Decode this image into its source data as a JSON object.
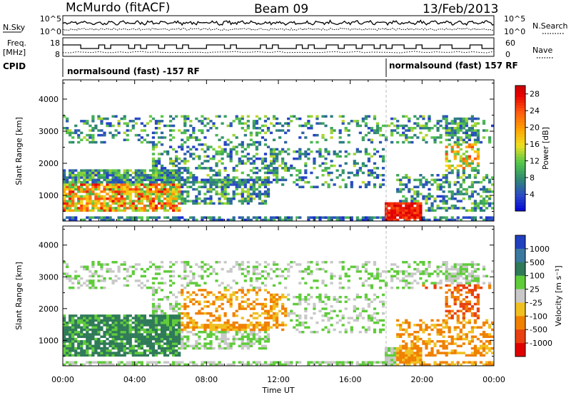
{
  "header": {
    "station": "McMurdo (fitACF)",
    "beam": "Beam 09",
    "date": "13/Feb/2013"
  },
  "strip": {
    "nsky_label": "N.Sky",
    "nsearch_label": "N.Search",
    "nsky_ticks": [
      "10^5",
      "10^0"
    ],
    "nsearch_ticks": [
      "10^5",
      "10^0"
    ],
    "freq_label": "Freq.",
    "freq_unit": "[MHz]",
    "freq_ticks": [
      "18",
      "8"
    ],
    "nave_label": "Nave",
    "nave_ticks": [
      "60",
      "0"
    ],
    "cpid_label": "CPID",
    "cpid_modes": [
      {
        "text": "normalsound (fast) -157 RF",
        "start_hour": 0
      },
      {
        "text": "normalsound (fast) 157 RF",
        "start_hour": 18
      }
    ]
  },
  "chart_data": [
    {
      "type": "heatmap",
      "name": "power",
      "ylabel": "Slant Range [km]",
      "ylim": [
        200,
        4600
      ],
      "yticks": [
        1000,
        2000,
        3000,
        4000
      ],
      "xlim": [
        0,
        24
      ],
      "colorbar": {
        "label": "Power [dB]",
        "ticks": [
          4,
          8,
          12,
          16,
          20,
          24,
          28
        ],
        "range": [
          0,
          30
        ]
      },
      "features": [
        {
          "from_hour": 0,
          "to_hour": 6.5,
          "range_km": [
            500,
            1800
          ],
          "level_db": "14-28"
        },
        {
          "from_hour": 6.5,
          "to_hour": 11,
          "range_km": [
            800,
            1400
          ],
          "level_db": "8-18"
        },
        {
          "from_hour": 18,
          "to_hour": 20,
          "range_km": [
            250,
            800
          ],
          "level_db": "24-30"
        },
        {
          "from_hour": 21.5,
          "to_hour": 23,
          "range_km": [
            1700,
            3400
          ],
          "level_db": "8-24"
        }
      ]
    },
    {
      "type": "heatmap",
      "name": "velocity",
      "ylabel": "Slant Range [km]",
      "xlabel": "Time UT",
      "ylim": [
        200,
        4600
      ],
      "yticks": [
        1000,
        2000,
        3000,
        4000
      ],
      "xlim": [
        0,
        24
      ],
      "x_ticks": [
        "00:00",
        "04:00",
        "08:00",
        "12:00",
        "16:00",
        "20:00",
        "00:00"
      ],
      "colorbar": {
        "label": "Velocity [m s⁻¹]",
        "ticks": [
          1000,
          500,
          100,
          25,
          -25,
          -100,
          -500,
          -1000
        ]
      },
      "features": [
        {
          "from_hour": 0,
          "to_hour": 6.5,
          "range_km": [
            500,
            1800
          ],
          "velocity": "25 to 500"
        },
        {
          "from_hour": 7,
          "to_hour": 12,
          "range_km": [
            1400,
            2500
          ],
          "velocity": "-100 to -500"
        },
        {
          "from_hour": 18.5,
          "to_hour": 24,
          "range_km": [
            300,
            1600
          ],
          "velocity": "-100 to -500"
        }
      ]
    }
  ]
}
